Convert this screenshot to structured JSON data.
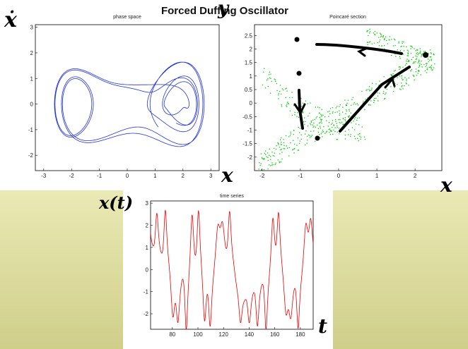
{
  "title": "Forced Duffing Oscillator",
  "handwriting": {
    "xdot": "ẋ",
    "y": "y",
    "x_phase": "x",
    "x_poincare": "x",
    "xt": "x(t)",
    "t": "t"
  },
  "colors": {
    "phase_line": "#2233dd",
    "poincare_points": "#00cc00",
    "time_line": "#ee0000",
    "ink": "#000000"
  },
  "chart_data": [
    {
      "type": "line",
      "title": "phase space",
      "xlim": [
        -3.3,
        3.3
      ],
      "ylim": [
        -2.6,
        3.1
      ],
      "xticks": [
        -3,
        -2,
        -1,
        0,
        1,
        2,
        3
      ],
      "yticks": [
        -2,
        -1,
        0,
        1,
        2,
        3
      ]
    },
    {
      "type": "scatter",
      "title": "Poincaré section",
      "xlim": [
        -2.2,
        2.7
      ],
      "ylim": [
        -2.5,
        2.9
      ],
      "xticks": [
        -2,
        -1,
        0,
        1,
        2
      ],
      "yticks": [
        -2,
        -1.5,
        -1,
        -0.5,
        0,
        0.5,
        1,
        1.5,
        2,
        2.5
      ]
    },
    {
      "type": "line",
      "title": "time series",
      "xlim": [
        63,
        190
      ],
      "ylim": [
        -2.7,
        3.1
      ],
      "xticks": [
        80,
        100,
        120,
        140,
        160,
        180
      ],
      "yticks": [
        -2,
        -1,
        0,
        1,
        2,
        3
      ]
    }
  ]
}
